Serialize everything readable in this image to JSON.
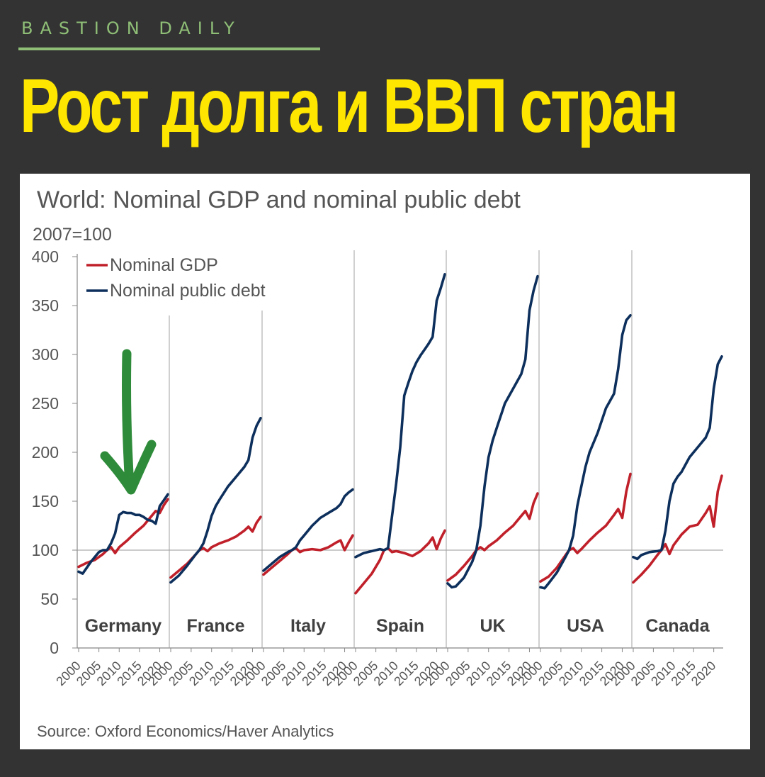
{
  "header": {
    "brand": "BASTION DAILY",
    "headline": "Рост долга и ВВП стран"
  },
  "colors": {
    "background": "#333333",
    "brand": "#8fbf77",
    "headline": "#ffe600",
    "gdp": "#c0202a",
    "debt": "#0d2f5c",
    "arrow": "#2e8b3a"
  },
  "annotation": {
    "type": "arrow",
    "icon": "green-down-arrow",
    "target_country": "Germany"
  },
  "chart_data": {
    "type": "line",
    "title": "World: Nominal GDP and nominal public debt",
    "subtitle": "2007=100",
    "source": "Source: Oxford Economics/Haver Analytics",
    "ylim": [
      0,
      400
    ],
    "yticks": [
      0,
      50,
      100,
      150,
      200,
      250,
      300,
      350,
      400
    ],
    "xlim": [
      2000,
      2022
    ],
    "xtick_labels": [
      "2000",
      "2005",
      "2010",
      "2015",
      "2020"
    ],
    "grid": false,
    "reference_line": 100,
    "legend": {
      "placement": "top-left",
      "entries": [
        "Nominal GDP",
        "Nominal public debt"
      ]
    },
    "panels": [
      {
        "country": "Germany",
        "series": [
          {
            "name": "Nominal GDP",
            "x": [
              2000,
              2002,
              2004,
              2006,
              2007,
              2008,
              2009,
              2010,
              2012,
              2014,
              2016,
              2018,
              2019,
              2020,
              2021,
              2022
            ],
            "values": [
              83,
              87,
              90,
              96,
              100,
              103,
              97,
              103,
              110,
              118,
              125,
              135,
              140,
              138,
              146,
              152
            ]
          },
          {
            "name": "Nominal public debt",
            "x": [
              2000,
              2001,
              2002,
              2003,
              2004,
              2005,
              2006,
              2007,
              2008,
              2009,
              2010,
              2011,
              2012,
              2013,
              2014,
              2015,
              2016,
              2017,
              2018,
              2019,
              2020,
              2021,
              2022
            ],
            "values": [
              78,
              76,
              82,
              88,
              93,
              98,
              100,
              100,
              107,
              117,
              136,
              139,
              138,
              138,
              136,
              136,
              134,
              131,
              130,
              127,
              145,
              151,
              157
            ]
          }
        ]
      },
      {
        "country": "France",
        "series": [
          {
            "name": "Nominal GDP",
            "x": [
              2000,
              2002,
              2004,
              2006,
              2007,
              2008,
              2009,
              2010,
              2012,
              2014,
              2016,
              2018,
              2019,
              2020,
              2021,
              2022
            ],
            "values": [
              72,
              79,
              86,
              95,
              100,
              102,
              99,
              103,
              107,
              110,
              114,
              120,
              124,
              119,
              128,
              134
            ]
          },
          {
            "name": "Nominal public debt",
            "x": [
              2000,
              2002,
              2004,
              2006,
              2007,
              2008,
              2009,
              2010,
              2011,
              2012,
              2014,
              2016,
              2018,
              2019,
              2020,
              2021,
              2022
            ],
            "values": [
              67,
              74,
              84,
              95,
              100,
              107,
              120,
              135,
              145,
              152,
              165,
              175,
              185,
              192,
              215,
              227,
              235
            ]
          }
        ]
      },
      {
        "country": "Italy",
        "series": [
          {
            "name": "Nominal GDP",
            "x": [
              2000,
              2002,
              2004,
              2006,
              2007,
              2008,
              2009,
              2010,
              2012,
              2014,
              2016,
              2018,
              2019,
              2020,
              2021,
              2022
            ],
            "values": [
              75,
              82,
              89,
              96,
              100,
              102,
              98,
              100,
              101,
              100,
              103,
              108,
              110,
              100,
              108,
              115
            ]
          },
          {
            "name": "Nominal public debt",
            "x": [
              2000,
              2002,
              2004,
              2006,
              2007,
              2008,
              2009,
              2010,
              2012,
              2014,
              2016,
              2018,
              2019,
              2020,
              2021,
              2022
            ],
            "values": [
              79,
              86,
              93,
              98,
              100,
              103,
              110,
              115,
              125,
              133,
              138,
              143,
              147,
              155,
              159,
              162
            ]
          }
        ]
      },
      {
        "country": "Spain",
        "series": [
          {
            "name": "Nominal GDP",
            "x": [
              2000,
              2002,
              2004,
              2006,
              2007,
              2008,
              2009,
              2010,
              2012,
              2014,
              2016,
              2018,
              2019,
              2020,
              2021,
              2022
            ],
            "values": [
              56,
              66,
              76,
              90,
              100,
              102,
              98,
              99,
              97,
              94,
              99,
              107,
              113,
              101,
              112,
              120
            ]
          },
          {
            "name": "Nominal public debt",
            "x": [
              2000,
              2002,
              2004,
              2006,
              2007,
              2008,
              2009,
              2010,
              2011,
              2012,
              2013,
              2014,
              2015,
              2016,
              2017,
              2018,
              2019,
              2020,
              2021,
              2022
            ],
            "values": [
              93,
              97,
              99,
              101,
              100,
              102,
              135,
              168,
              205,
              258,
              271,
              283,
              292,
              299,
              305,
              311,
              318,
              355,
              368,
              382
            ]
          }
        ]
      },
      {
        "country": "UK",
        "series": [
          {
            "name": "Nominal GDP",
            "x": [
              2000,
              2002,
              2004,
              2006,
              2007,
              2008,
              2009,
              2010,
              2012,
              2014,
              2016,
              2018,
              2019,
              2020,
              2021,
              2022
            ],
            "values": [
              69,
              75,
              84,
              94,
              100,
              103,
              100,
              104,
              110,
              118,
              125,
              135,
              140,
              132,
              148,
              158
            ]
          },
          {
            "name": "Nominal public debt",
            "x": [
              2000,
              2001,
              2002,
              2004,
              2006,
              2007,
              2008,
              2009,
              2010,
              2011,
              2012,
              2014,
              2016,
              2018,
              2019,
              2020,
              2021,
              2022
            ],
            "values": [
              66,
              62,
              63,
              72,
              88,
              100,
              125,
              165,
              195,
              212,
              225,
              250,
              265,
              280,
              295,
              345,
              365,
              380
            ]
          }
        ]
      },
      {
        "country": "USA",
        "series": [
          {
            "name": "Nominal GDP",
            "x": [
              2000,
              2002,
              2004,
              2006,
              2007,
              2008,
              2009,
              2010,
              2012,
              2014,
              2016,
              2018,
              2019,
              2020,
              2021,
              2022
            ],
            "values": [
              68,
              73,
              82,
              94,
              100,
              102,
              97,
              101,
              110,
              118,
              125,
              136,
              142,
              133,
              160,
              178
            ]
          },
          {
            "name": "Nominal public debt",
            "x": [
              2000,
              2001,
              2002,
              2004,
              2006,
              2007,
              2008,
              2009,
              2010,
              2011,
              2012,
              2014,
              2016,
              2018,
              2019,
              2020,
              2021,
              2022
            ],
            "values": [
              62,
              61,
              66,
              77,
              92,
              100,
              115,
              145,
              165,
              185,
              200,
              220,
              245,
              260,
              285,
              320,
              335,
              340
            ]
          }
        ]
      },
      {
        "country": "Canada",
        "series": [
          {
            "name": "Nominal GDP",
            "x": [
              2000,
              2002,
              2004,
              2006,
              2007,
              2008,
              2009,
              2010,
              2012,
              2014,
              2016,
              2018,
              2019,
              2020,
              2021,
              2022
            ],
            "values": [
              67,
              75,
              84,
              95,
              100,
              106,
              96,
              105,
              116,
              124,
              126,
              138,
              145,
              124,
              160,
              176
            ]
          },
          {
            "name": "Nominal public debt",
            "x": [
              2000,
              2001,
              2002,
              2004,
              2006,
              2007,
              2008,
              2009,
              2010,
              2011,
              2012,
              2014,
              2016,
              2018,
              2019,
              2020,
              2021,
              2022
            ],
            "values": [
              93,
              91,
              95,
              98,
              99,
              100,
              120,
              150,
              168,
              175,
              180,
              195,
              205,
              215,
              225,
              265,
              290,
              298
            ]
          }
        ]
      }
    ]
  }
}
